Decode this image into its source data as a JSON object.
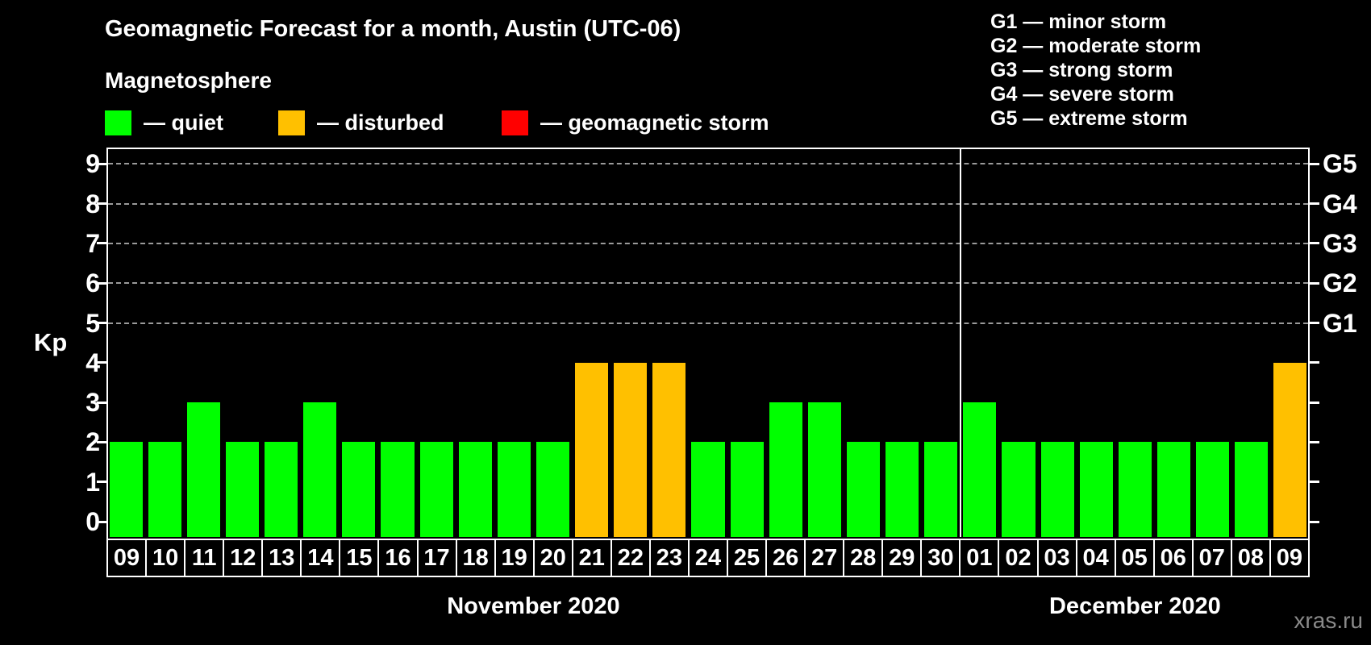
{
  "header": {
    "title": "Geomagnetic Forecast for a month, Austin (UTC-06)",
    "subtitle": "Magnetosphere",
    "legend": [
      {
        "name": "quiet",
        "label": "— quiet",
        "color": "#00ff00"
      },
      {
        "name": "disturbed",
        "label": "— disturbed",
        "color": "#ffc000"
      },
      {
        "name": "geomagnetic-storm",
        "label": "— geomagnetic storm",
        "color": "#ff0000"
      }
    ],
    "g_scale_legend": [
      "G1 — minor storm",
      "G2 — moderate storm",
      "G3 — strong storm",
      "G4 — severe storm",
      "G5 — extreme storm"
    ]
  },
  "chart_data": {
    "type": "bar",
    "title": "Geomagnetic Forecast for a month, Austin (UTC-06)",
    "ylabel": "Kp",
    "ylim": [
      -0.4,
      9.5
    ],
    "yticks": [
      0,
      1,
      2,
      3,
      4,
      5,
      6,
      7,
      8,
      9
    ],
    "gridlines_at": [
      5,
      6,
      7,
      8,
      9
    ],
    "grid": "dashed horizontal at storm levels only",
    "right_axis_labels": [
      {
        "value": 5,
        "label": "G1"
      },
      {
        "value": 6,
        "label": "G2"
      },
      {
        "value": 7,
        "label": "G3"
      },
      {
        "value": 8,
        "label": "G4"
      },
      {
        "value": 9,
        "label": "G5"
      }
    ],
    "colors": {
      "quiet": "#00ff00",
      "disturbed": "#ffc000",
      "storm": "#ff0000"
    },
    "months": [
      {
        "label": "November 2020",
        "days": [
          {
            "day": "09",
            "kp": 2,
            "status": "quiet"
          },
          {
            "day": "10",
            "kp": 2,
            "status": "quiet"
          },
          {
            "day": "11",
            "kp": 3,
            "status": "quiet"
          },
          {
            "day": "12",
            "kp": 2,
            "status": "quiet"
          },
          {
            "day": "13",
            "kp": 2,
            "status": "quiet"
          },
          {
            "day": "14",
            "kp": 3,
            "status": "quiet"
          },
          {
            "day": "15",
            "kp": 2,
            "status": "quiet"
          },
          {
            "day": "16",
            "kp": 2,
            "status": "quiet"
          },
          {
            "day": "17",
            "kp": 2,
            "status": "quiet"
          },
          {
            "day": "18",
            "kp": 2,
            "status": "quiet"
          },
          {
            "day": "19",
            "kp": 2,
            "status": "quiet"
          },
          {
            "day": "20",
            "kp": 2,
            "status": "quiet"
          },
          {
            "day": "21",
            "kp": 4,
            "status": "disturbed"
          },
          {
            "day": "22",
            "kp": 4,
            "status": "disturbed"
          },
          {
            "day": "23",
            "kp": 4,
            "status": "disturbed"
          },
          {
            "day": "24",
            "kp": 2,
            "status": "quiet"
          },
          {
            "day": "25",
            "kp": 2,
            "status": "quiet"
          },
          {
            "day": "26",
            "kp": 3,
            "status": "quiet"
          },
          {
            "day": "27",
            "kp": 3,
            "status": "quiet"
          },
          {
            "day": "28",
            "kp": 2,
            "status": "quiet"
          },
          {
            "day": "29",
            "kp": 2,
            "status": "quiet"
          },
          {
            "day": "30",
            "kp": 2,
            "status": "quiet"
          }
        ]
      },
      {
        "label": "December 2020",
        "days": [
          {
            "day": "01",
            "kp": 3,
            "status": "quiet"
          },
          {
            "day": "02",
            "kp": 2,
            "status": "quiet"
          },
          {
            "day": "03",
            "kp": 2,
            "status": "quiet"
          },
          {
            "day": "04",
            "kp": 2,
            "status": "quiet"
          },
          {
            "day": "05",
            "kp": 2,
            "status": "quiet"
          },
          {
            "day": "06",
            "kp": 2,
            "status": "quiet"
          },
          {
            "day": "07",
            "kp": 2,
            "status": "quiet"
          },
          {
            "day": "08",
            "kp": 2,
            "status": "quiet"
          },
          {
            "day": "09",
            "kp": 4,
            "status": "disturbed"
          }
        ]
      }
    ]
  },
  "watermark": "xras.ru"
}
